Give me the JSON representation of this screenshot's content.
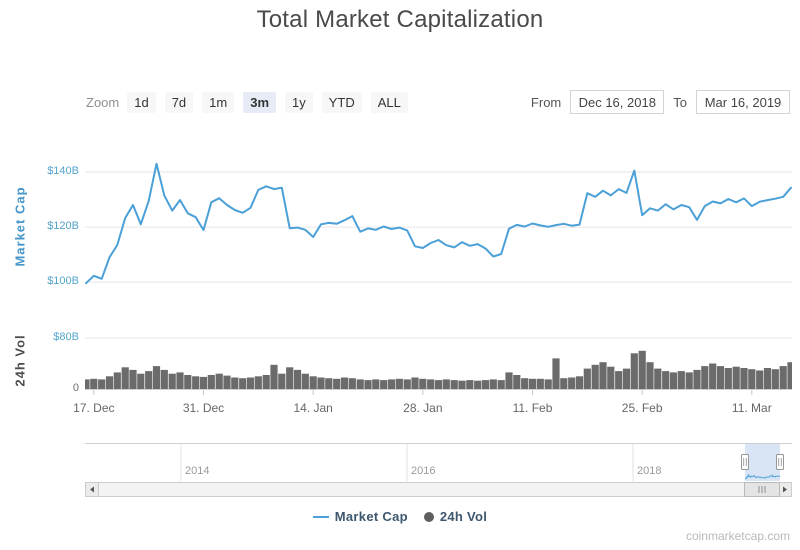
{
  "page": {
    "title": "Total Market Capitalization",
    "attribution": "coinmarketcap.com"
  },
  "toolbar": {
    "zoom_label": "Zoom",
    "zoom_buttons": [
      "1d",
      "7d",
      "1m",
      "3m",
      "1y",
      "YTD",
      "ALL"
    ],
    "zoom_selected": "3m",
    "from_label": "From",
    "from_value": "Dec 16, 2018",
    "to_label": "To",
    "to_value": "Mar 16, 2019"
  },
  "legend": {
    "items": [
      {
        "label": "Market Cap",
        "symbol": "line",
        "color": "#4aa0d7"
      },
      {
        "label": "24h Vol",
        "symbol": "circle",
        "color": "#5f5f5f"
      }
    ]
  },
  "navigator": {
    "year_labels": [
      "2014",
      "2016",
      "2018"
    ],
    "selected_range": [
      "Dec 16, 2018",
      "Mar 16, 2019"
    ]
  },
  "chart_data": [
    {
      "type": "line",
      "name": "Market Cap",
      "ylabel": "Market Cap",
      "color": "#4aa0d7",
      "unit": "billion USD",
      "ylim": [
        93.5,
        148
      ],
      "yticks": [
        {
          "label": "$100B",
          "value": 100
        },
        {
          "label": "$120B",
          "value": 120
        },
        {
          "label": "$140B",
          "value": 140
        }
      ],
      "x_range": [
        "Dec 16, 2018",
        "Mar 16, 2019"
      ],
      "x_tick_labels": [
        "17. Dec",
        "31. Dec",
        "14. Jan",
        "28. Jan",
        "11. Feb",
        "25. Feb",
        "11. Mar"
      ],
      "x_tick_day_index": [
        1,
        15,
        29,
        43,
        57,
        71,
        85
      ],
      "grid": true,
      "values": [
        99.6,
        102.3,
        101.2,
        109.0,
        113.5,
        123.3,
        128.0,
        121.0,
        129.5,
        143.0,
        131.5,
        126.0,
        129.8,
        125.0,
        123.6,
        118.9,
        129.0,
        130.5,
        128.0,
        126.2,
        125.2,
        127.0,
        133.5,
        134.8,
        133.8,
        134.3,
        119.6,
        119.8,
        119.0,
        116.4,
        121.0,
        121.5,
        121.2,
        122.5,
        124.0,
        118.3,
        119.5,
        119.0,
        120.2,
        119.3,
        119.8,
        118.8,
        113.0,
        112.4,
        114.2,
        115.3,
        113.4,
        112.6,
        114.5,
        113.2,
        113.8,
        112.2,
        109.3,
        110.2,
        119.4,
        120.8,
        120.2,
        121.3,
        120.6,
        120.1,
        120.7,
        121.2,
        120.5,
        120.9,
        132.3,
        131.0,
        133.2,
        131.5,
        133.8,
        132.4,
        140.5,
        124.3,
        126.8,
        126.0,
        128.3,
        126.4,
        128.0,
        127.2,
        122.6,
        127.6,
        129.3,
        128.6,
        130.2,
        129.0,
        130.4,
        127.6,
        129.2,
        129.8,
        130.3,
        131.0,
        134.3
      ]
    },
    {
      "type": "column",
      "name": "24h Vol",
      "ylabel": "24h Vol",
      "color": "#6b6b6b",
      "unit": "billion USD",
      "ylim": [
        0,
        80
      ],
      "yticks": [
        {
          "label": "0",
          "value": 0
        },
        {
          "label": "$80B",
          "value": 80
        }
      ],
      "values": [
        15,
        16,
        15,
        20,
        26,
        34,
        30,
        24,
        28,
        36,
        30,
        24,
        26,
        22,
        20,
        19,
        22,
        24,
        21,
        18,
        17,
        18,
        20,
        22,
        38,
        24,
        34,
        30,
        24,
        20,
        18,
        17,
        16,
        18,
        17,
        15,
        14,
        15,
        14,
        15,
        16,
        15,
        18,
        16,
        15,
        14,
        15,
        14,
        13,
        14,
        13,
        14,
        15,
        14,
        26,
        22,
        17,
        16,
        16,
        15,
        48,
        17,
        18,
        20,
        32,
        38,
        42,
        35,
        28,
        32,
        56,
        60,
        42,
        32,
        28,
        26,
        28,
        26,
        30,
        36,
        40,
        36,
        33,
        35,
        33,
        31,
        29,
        33,
        31,
        36,
        42
      ]
    }
  ]
}
